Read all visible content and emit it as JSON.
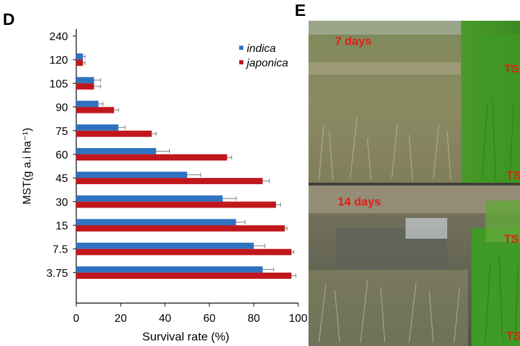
{
  "panels": {
    "chart_letter": "D",
    "photo_letter": "E"
  },
  "photo": {
    "top_label": "7 days",
    "bottom_label": "14 days",
    "ts_label": "TS"
  },
  "colors": {
    "indica": "#2f73c0",
    "japonica": "#c0171d"
  },
  "chart_data": {
    "type": "bar",
    "orientation": "horizontal",
    "categories": [
      "240",
      "120",
      "105",
      "90",
      "75",
      "60",
      "45",
      "30",
      "15",
      "7.5",
      "3.75"
    ],
    "series": [
      {
        "name": "indica",
        "values": [
          0,
          3,
          8,
          10,
          19,
          36,
          50,
          66,
          72,
          80,
          84
        ],
        "errors": [
          0,
          1,
          3,
          2,
          3,
          6,
          6,
          6,
          4,
          5,
          5
        ]
      },
      {
        "name": "japonica",
        "values": [
          0,
          3,
          8,
          17,
          34,
          68,
          84,
          90,
          94,
          97,
          97
        ],
        "errors": [
          0,
          1,
          3,
          2,
          2,
          2,
          3,
          2,
          1,
          1,
          2
        ]
      }
    ],
    "xlabel": "Survival rate (%)",
    "ylabel": "MST(g a.i ha⁻¹)",
    "xlim": [
      0,
      100
    ],
    "xticks": [
      "0",
      "20",
      "40",
      "60",
      "80",
      "100"
    ],
    "legend_position": "top-right",
    "grid": false
  }
}
